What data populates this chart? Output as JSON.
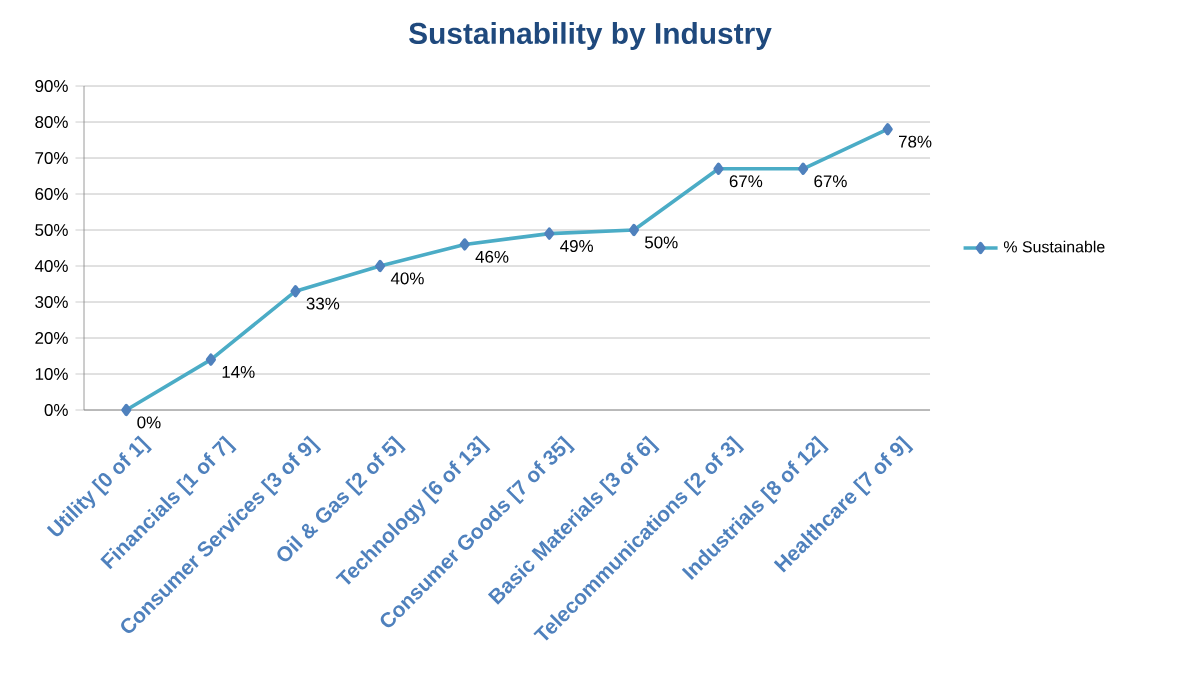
{
  "chart_data": {
    "type": "line",
    "title": "Sustainability by Industry",
    "categories": [
      "Utility [0 of 1]",
      "Financials [1 of 7]",
      "Consumer Services [3 of 9]",
      "Oil & Gas [2 of 5]",
      "Technology [6 of 13]",
      "Consumer Goods [7 of 35]",
      "Basic Materials [3 of 6]",
      "Telecommunications [2 of 3]",
      "Industrials [8 of 12]",
      "Healthcare [7 of 9]"
    ],
    "series": [
      {
        "name": "% Sustainable",
        "color": "#4bacc6",
        "values": [
          0,
          14,
          33,
          40,
          46,
          49,
          50,
          67,
          67,
          78
        ],
        "value_labels": [
          "0%",
          "14%",
          "33%",
          "40%",
          "46%",
          "49%",
          "50%",
          "67%",
          "67%",
          "78%"
        ]
      }
    ],
    "ylim": [
      0,
      90
    ],
    "yticks": [
      {
        "value": 0,
        "label": "0%"
      },
      {
        "value": 10,
        "label": "10%"
      },
      {
        "value": 20,
        "label": "20%"
      },
      {
        "value": 30,
        "label": "30%"
      },
      {
        "value": 40,
        "label": "40%"
      },
      {
        "value": 50,
        "label": "50%"
      },
      {
        "value": 60,
        "label": "60%"
      },
      {
        "value": 70,
        "label": "70%"
      },
      {
        "value": 80,
        "label": "80%"
      },
      {
        "value": 90,
        "label": "90%"
      }
    ],
    "grid": "y",
    "legend": "right",
    "marker": "diamond",
    "line_style": "solid"
  }
}
